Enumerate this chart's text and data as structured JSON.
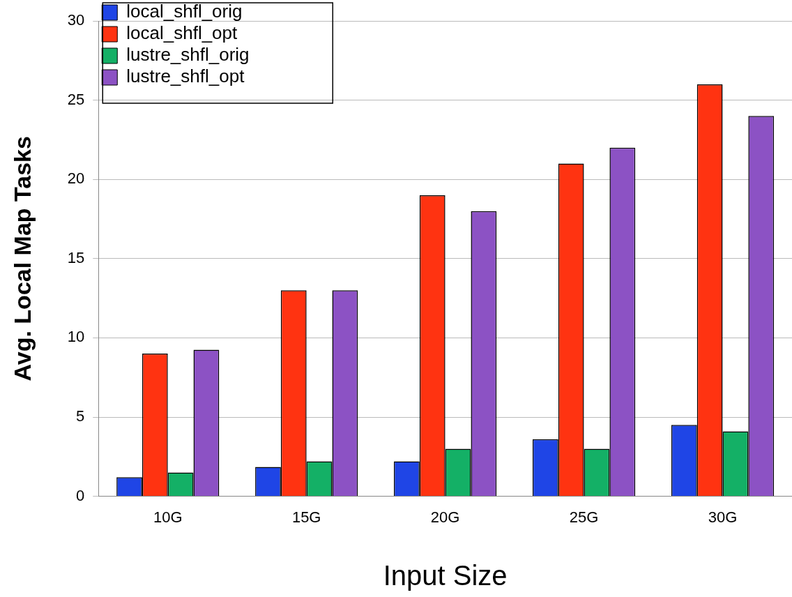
{
  "chart_data": {
    "type": "bar",
    "xlabel": "Input Size",
    "ylabel": "Avg. Local Map Tasks",
    "categories": [
      "10G",
      "15G",
      "20G",
      "25G",
      "30G"
    ],
    "series": [
      {
        "name": "local_shfl_orig",
        "color": "#1f45e6",
        "values": [
          1.2,
          1.85,
          2.2,
          3.6,
          4.5
        ]
      },
      {
        "name": "local_shfl_opt",
        "color": "#ff3311",
        "values": [
          9,
          13,
          19,
          21,
          26
        ]
      },
      {
        "name": "lustre_shfl_orig",
        "color": "#14b066",
        "values": [
          1.5,
          2.2,
          3,
          3,
          4.1
        ]
      },
      {
        "name": "lustre_shfl_opt",
        "color": "#8c52c4",
        "values": [
          9.25,
          13,
          18,
          22,
          24
        ]
      }
    ],
    "ylim": [
      0,
      30
    ],
    "yticks": [
      0,
      5,
      10,
      15,
      20,
      25,
      30
    ],
    "grid": "y",
    "legend": "top left"
  }
}
